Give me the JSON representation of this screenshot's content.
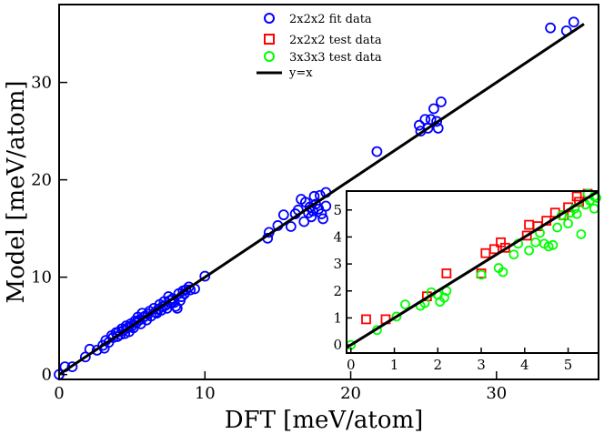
{
  "chart_data": [
    {
      "type": "scatter",
      "name": "main",
      "xlabel": "DFT [meV/atom]",
      "ylabel": "Model [meV/atom]",
      "xlim": [
        0,
        37
      ],
      "ylim": [
        -0.5,
        38
      ],
      "xticks": [
        0,
        10,
        20,
        30
      ],
      "yticks": [
        0,
        10,
        20,
        30
      ],
      "legend_position": "top-center",
      "legend": [
        {
          "label": "2x2x2 fit data",
          "marker": "circle",
          "color": "#0000ff"
        },
        {
          "label": "2x2x2 test data",
          "marker": "square",
          "color": "#ff0000"
        },
        {
          "label": "3x3x3 test data",
          "marker": "circle",
          "color": "#00ff00"
        },
        {
          "label": "y=x",
          "marker": "line",
          "color": "#000000"
        }
      ],
      "series": [
        {
          "name": "2x2x2 fit data",
          "color": "#0000ff",
          "marker": "circle",
          "points": [
            [
              0.0,
              0.0
            ],
            [
              0.4,
              0.8
            ],
            [
              0.9,
              0.8
            ],
            [
              1.8,
              1.8
            ],
            [
              2.1,
              2.6
            ],
            [
              2.6,
              2.5
            ],
            [
              3.0,
              3.0
            ],
            [
              3.1,
              2.7
            ],
            [
              3.2,
              3.5
            ],
            [
              3.4,
              3.3
            ],
            [
              3.6,
              4.0
            ],
            [
              3.7,
              3.8
            ],
            [
              3.9,
              4.3
            ],
            [
              4.0,
              3.9
            ],
            [
              4.1,
              4.4
            ],
            [
              4.2,
              4.1
            ],
            [
              4.3,
              4.7
            ],
            [
              4.4,
              4.5
            ],
            [
              4.5,
              4.2
            ],
            [
              4.6,
              5.0
            ],
            [
              4.7,
              4.8
            ],
            [
              4.8,
              4.4
            ],
            [
              4.9,
              5.2
            ],
            [
              5.0,
              5.0
            ],
            [
              5.1,
              4.8
            ],
            [
              5.2,
              5.5
            ],
            [
              5.3,
              5.3
            ],
            [
              5.4,
              5.9
            ],
            [
              5.5,
              5.6
            ],
            [
              5.6,
              5.2
            ],
            [
              5.7,
              6.3
            ],
            [
              5.8,
              5.9
            ],
            [
              5.9,
              6.0
            ],
            [
              6.0,
              5.6
            ],
            [
              6.1,
              6.2
            ],
            [
              6.2,
              6.5
            ],
            [
              6.3,
              6.0
            ],
            [
              6.5,
              6.8
            ],
            [
              6.6,
              6.4
            ],
            [
              6.7,
              6.3
            ],
            [
              6.8,
              6.7
            ],
            [
              6.9,
              7.2
            ],
            [
              7.0,
              6.6
            ],
            [
              7.1,
              7.0
            ],
            [
              7.2,
              7.5
            ],
            [
              7.3,
              7.1
            ],
            [
              7.4,
              6.8
            ],
            [
              7.5,
              8.0
            ],
            [
              7.6,
              7.6
            ],
            [
              7.7,
              7.3
            ],
            [
              7.8,
              7.8
            ],
            [
              7.9,
              7.4
            ],
            [
              8.0,
              7.0
            ],
            [
              8.1,
              6.8
            ],
            [
              8.2,
              8.3
            ],
            [
              8.3,
              7.6
            ],
            [
              8.4,
              8.0
            ],
            [
              8.5,
              8.6
            ],
            [
              8.6,
              8.3
            ],
            [
              8.7,
              8.7
            ],
            [
              8.9,
              9.0
            ],
            [
              9.0,
              8.7
            ],
            [
              9.3,
              8.8
            ],
            [
              10.0,
              10.1
            ],
            [
              14.3,
              14.0
            ],
            [
              14.4,
              14.6
            ],
            [
              15.0,
              15.3
            ],
            [
              15.4,
              16.4
            ],
            [
              15.9,
              15.2
            ],
            [
              16.2,
              16.5
            ],
            [
              16.4,
              16.9
            ],
            [
              16.6,
              18.0
            ],
            [
              16.8,
              15.7
            ],
            [
              16.9,
              17.7
            ],
            [
              17.1,
              16.6
            ],
            [
              17.2,
              17.2
            ],
            [
              17.3,
              16.2
            ],
            [
              17.4,
              16.8
            ],
            [
              17.5,
              18.3
            ],
            [
              17.6,
              17.5
            ],
            [
              17.8,
              17.0
            ],
            [
              17.9,
              18.4
            ],
            [
              18.0,
              16.5
            ],
            [
              18.1,
              16.0
            ],
            [
              18.3,
              17.3
            ],
            [
              18.3,
              18.7
            ],
            [
              21.8,
              22.9
            ],
            [
              24.7,
              25.6
            ],
            [
              24.8,
              25.0
            ],
            [
              25.1,
              26.2
            ],
            [
              25.3,
              25.3
            ],
            [
              25.5,
              26.2
            ],
            [
              25.7,
              27.3
            ],
            [
              25.9,
              26.0
            ],
            [
              26.0,
              25.3
            ],
            [
              26.2,
              28.0
            ],
            [
              33.7,
              35.6
            ],
            [
              34.8,
              35.3
            ],
            [
              35.3,
              36.2
            ]
          ]
        },
        {
          "name": "y=x",
          "type": "line",
          "color": "#000000",
          "points": [
            [
              0,
              0
            ],
            [
              36,
              36
            ]
          ]
        }
      ]
    },
    {
      "type": "scatter",
      "name": "inset",
      "xlim": [
        -0.1,
        5.7
      ],
      "ylim": [
        -0.3,
        5.7
      ],
      "xticks": [
        0,
        1,
        2,
        3,
        4,
        5
      ],
      "yticks": [
        0,
        1,
        2,
        3,
        4,
        5
      ],
      "series": [
        {
          "name": "2x2x2 test data",
          "color": "#ff0000",
          "marker": "square",
          "points": [
            [
              0.35,
              0.95
            ],
            [
              0.8,
              0.95
            ],
            [
              1.75,
              1.8
            ],
            [
              2.2,
              2.65
            ],
            [
              3.0,
              2.65
            ],
            [
              3.1,
              3.4
            ],
            [
              3.3,
              3.55
            ],
            [
              3.45,
              3.8
            ],
            [
              3.55,
              3.6
            ],
            [
              4.05,
              4.05
            ],
            [
              4.1,
              4.45
            ],
            [
              4.3,
              4.4
            ],
            [
              4.5,
              4.6
            ],
            [
              4.7,
              4.9
            ],
            [
              4.9,
              4.8
            ],
            [
              5.0,
              5.1
            ],
            [
              5.2,
              5.5
            ],
            [
              5.25,
              5.3
            ],
            [
              5.45,
              5.6
            ]
          ]
        },
        {
          "name": "3x3x3 test data",
          "color": "#00ff00",
          "marker": "circle",
          "points": [
            [
              0.0,
              0.0
            ],
            [
              0.6,
              0.55
            ],
            [
              1.05,
              1.05
            ],
            [
              1.25,
              1.5
            ],
            [
              1.6,
              1.45
            ],
            [
              1.7,
              1.55
            ],
            [
              1.85,
              1.95
            ],
            [
              2.0,
              1.85
            ],
            [
              2.05,
              1.6
            ],
            [
              2.15,
              1.75
            ],
            [
              2.2,
              2.0
            ],
            [
              3.0,
              2.6
            ],
            [
              3.4,
              2.85
            ],
            [
              3.5,
              2.7
            ],
            [
              3.75,
              3.35
            ],
            [
              3.85,
              3.75
            ],
            [
              4.1,
              3.5
            ],
            [
              4.25,
              3.8
            ],
            [
              4.35,
              4.15
            ],
            [
              4.45,
              3.75
            ],
            [
              4.55,
              3.65
            ],
            [
              4.65,
              3.7
            ],
            [
              4.75,
              4.35
            ],
            [
              4.85,
              4.8
            ],
            [
              5.0,
              4.5
            ],
            [
              5.05,
              4.9
            ],
            [
              5.15,
              5.05
            ],
            [
              5.2,
              4.85
            ],
            [
              5.3,
              4.1
            ],
            [
              5.4,
              5.2
            ],
            [
              5.45,
              5.6
            ],
            [
              5.5,
              5.35
            ],
            [
              5.6,
              5.5
            ],
            [
              5.65,
              5.45
            ],
            [
              5.6,
              5.05
            ]
          ]
        },
        {
          "name": "y=x",
          "type": "line",
          "color": "#000000",
          "points": [
            [
              -0.1,
              -0.1
            ],
            [
              5.7,
              5.7
            ]
          ]
        }
      ]
    }
  ]
}
